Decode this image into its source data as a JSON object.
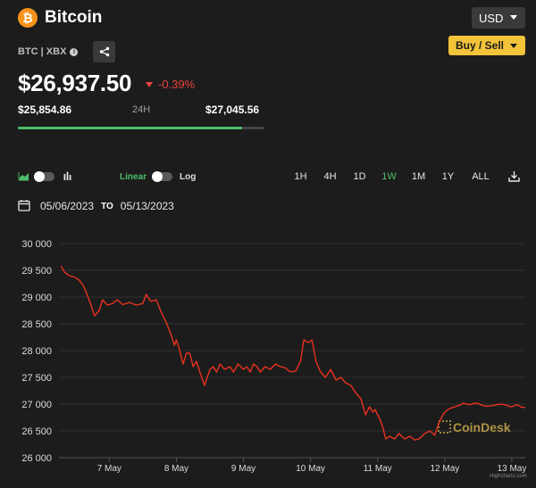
{
  "header": {
    "title": "Bitcoin",
    "logo_glyph": "₿",
    "currency_select": "USD",
    "buy_sell_label": "Buy / Sell"
  },
  "ticker": {
    "pair": "BTC | XBX",
    "price": "$26,937.50",
    "change": "-0.39%",
    "range_low": "$25,854.86",
    "range_period": "24H",
    "range_high": "$27,045.56",
    "range_position_fraction": 0.91
  },
  "controls": {
    "scale_linear_label": "Linear",
    "scale_log_label": "Log",
    "time_ranges": [
      "1H",
      "4H",
      "1D",
      "1W",
      "1M",
      "1Y",
      "ALL"
    ],
    "active_range": "1W",
    "date_from": "05/06/2023",
    "date_to_word": "TO",
    "date_to": "05/13/2023"
  },
  "chart_data": {
    "type": "line",
    "title": "",
    "ylim": [
      26000,
      30000
    ],
    "y_ticks": [
      26000,
      26500,
      27000,
      27500,
      28000,
      28500,
      29000,
      29500,
      30000
    ],
    "y_tick_labels": [
      "26 000",
      "26 500",
      "27 000",
      "27 500",
      "28 000",
      "28 500",
      "29 000",
      "29 500",
      "30 000"
    ],
    "x_range_days": [
      6.25,
      13.2
    ],
    "x_ticks": [
      7,
      8,
      9,
      10,
      11,
      12,
      13
    ],
    "x_tick_labels": [
      "7 May",
      "8 May",
      "9 May",
      "10 May",
      "11 May",
      "12 May",
      "13 May"
    ],
    "grid": "horizontal",
    "series": [
      {
        "color": "#e8321e",
        "x": [
          6.28,
          6.33,
          6.4,
          6.47,
          6.55,
          6.62,
          6.7,
          6.78,
          6.85,
          6.9,
          6.97,
          7.05,
          7.12,
          7.2,
          7.3,
          7.4,
          7.5,
          7.55,
          7.62,
          7.7,
          7.78,
          7.85,
          7.92,
          7.97,
          8.0,
          8.04,
          8.1,
          8.15,
          8.2,
          8.25,
          8.3,
          8.35,
          8.42,
          8.5,
          8.55,
          8.6,
          8.65,
          8.72,
          8.8,
          8.85,
          8.92,
          9.0,
          9.05,
          9.1,
          9.15,
          9.2,
          9.25,
          9.32,
          9.4,
          9.48,
          9.55,
          9.62,
          9.7,
          9.78,
          9.85,
          9.9,
          9.97,
          10.02,
          10.08,
          10.15,
          10.22,
          10.3,
          10.38,
          10.45,
          10.52,
          10.6,
          10.68,
          10.75,
          10.82,
          10.88,
          10.93,
          10.96,
          11.0,
          11.04,
          11.08,
          11.12,
          11.18,
          11.25,
          11.32,
          11.4,
          11.48,
          11.55,
          11.62,
          11.7,
          11.78,
          11.85,
          11.9,
          11.95,
          12.0,
          12.05,
          12.1,
          12.15,
          12.22,
          12.28,
          12.32,
          12.38,
          12.42,
          12.48,
          12.55,
          12.62,
          12.7,
          12.78,
          12.85,
          12.92,
          12.98,
          13.02,
          13.08,
          13.15,
          13.2
        ],
        "y": [
          29580,
          29470,
          29400,
          29380,
          29320,
          29200,
          28950,
          28650,
          28750,
          28950,
          28850,
          28880,
          28950,
          28860,
          28900,
          28850,
          28880,
          29050,
          28920,
          28950,
          28700,
          28520,
          28300,
          28100,
          28200,
          28050,
          27750,
          27950,
          27950,
          27700,
          27800,
          27600,
          27350,
          27650,
          27700,
          27600,
          27750,
          27650,
          27700,
          27600,
          27750,
          27650,
          27700,
          27600,
          27750,
          27700,
          27600,
          27700,
          27650,
          27750,
          27700,
          27680,
          27600,
          27620,
          27800,
          28200,
          28150,
          28200,
          27800,
          27600,
          27500,
          27650,
          27450,
          27500,
          27400,
          27350,
          27200,
          27100,
          26800,
          26950,
          26850,
          26900,
          26800,
          26700,
          26550,
          26350,
          26400,
          26350,
          26450,
          26350,
          26400,
          26330,
          26350,
          26450,
          26500,
          26420,
          26600,
          26750,
          26850,
          26900,
          26930,
          26950,
          26980,
          27020,
          27000,
          26990,
          27010,
          27020,
          26980,
          26960,
          26970,
          26990,
          27000,
          26980,
          26950,
          26960,
          26990,
          26940,
          26937
        ]
      }
    ]
  },
  "watermark": "CoinDesk",
  "credit": "Highcharts.com"
}
